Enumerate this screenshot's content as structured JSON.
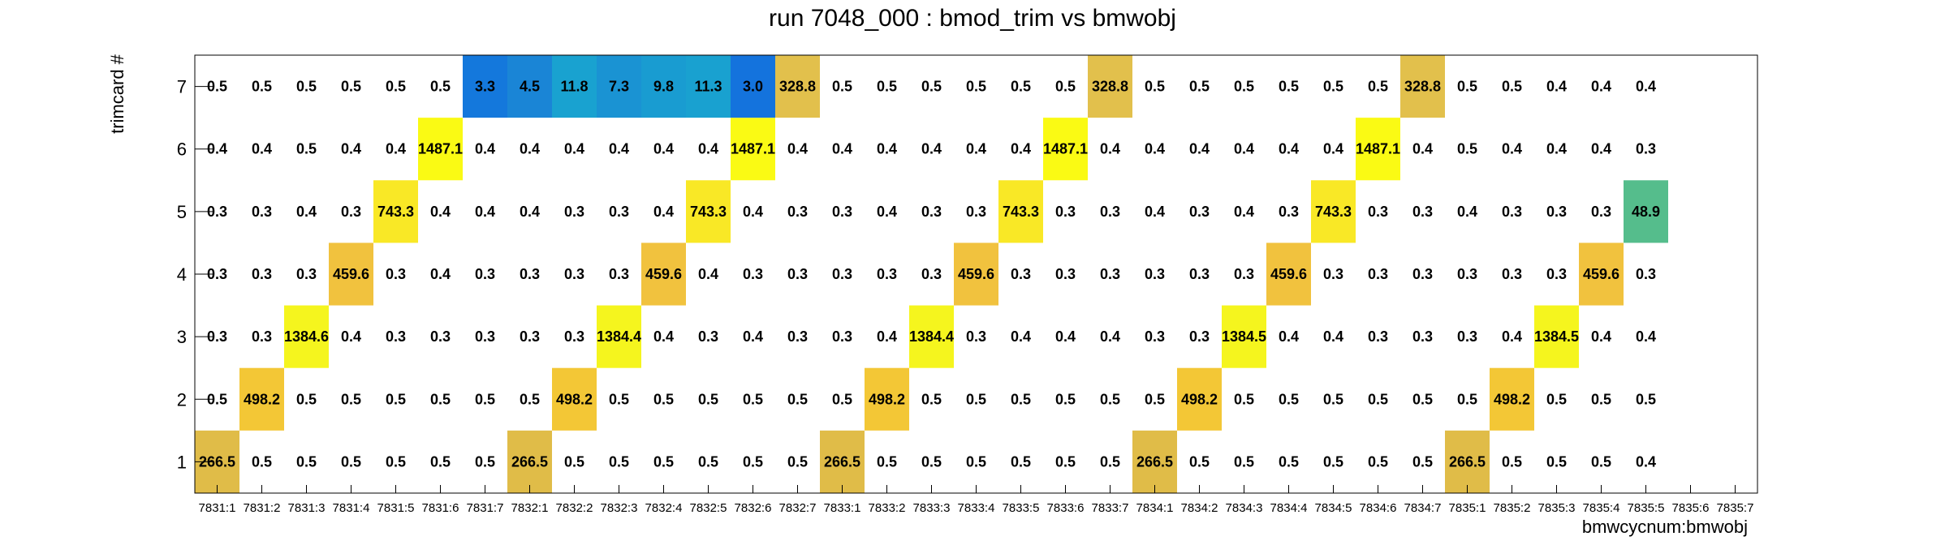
{
  "chart_data": {
    "type": "heatmap",
    "title": "run 7048_000 : bmod_trim vs bmwobj",
    "xlabel": "bmwcycnum:bmwobj",
    "ylabel": "trimcard #",
    "categories": [
      "7831:1",
      "7831:2",
      "7831:3",
      "7831:4",
      "7831:5",
      "7831:6",
      "7831:7",
      "7832:1",
      "7832:2",
      "7832:3",
      "7832:4",
      "7832:5",
      "7832:6",
      "7832:7",
      "7833:1",
      "7833:2",
      "7833:3",
      "7833:4",
      "7833:5",
      "7833:6",
      "7833:7",
      "7834:1",
      "7834:2",
      "7834:3",
      "7834:4",
      "7834:5",
      "7834:6",
      "7834:7",
      "7835:1",
      "7835:2",
      "7835:3",
      "7835:4",
      "7835:5",
      "7835:6",
      "7835:7"
    ],
    "rows": [
      "1",
      "2",
      "3",
      "4",
      "5",
      "6",
      "7"
    ],
    "values": [
      [
        "266.5",
        "0.5",
        "0.5",
        "0.5",
        "0.5",
        "0.5",
        "0.5",
        "266.5",
        "0.5",
        "0.5",
        "0.5",
        "0.5",
        "0.5",
        "0.5",
        "266.5",
        "0.5",
        "0.5",
        "0.5",
        "0.5",
        "0.5",
        "0.5",
        "266.5",
        "0.5",
        "0.5",
        "0.5",
        "0.5",
        "0.5",
        "0.5",
        "266.5",
        "0.5",
        "0.5",
        "0.5",
        "0.4",
        null,
        null
      ],
      [
        "0.5",
        "498.2",
        "0.5",
        "0.5",
        "0.5",
        "0.5",
        "0.5",
        "0.5",
        "498.2",
        "0.5",
        "0.5",
        "0.5",
        "0.5",
        "0.5",
        "0.5",
        "498.2",
        "0.5",
        "0.5",
        "0.5",
        "0.5",
        "0.5",
        "0.5",
        "498.2",
        "0.5",
        "0.5",
        "0.5",
        "0.5",
        "0.5",
        "0.5",
        "498.2",
        "0.5",
        "0.5",
        "0.5",
        null,
        null
      ],
      [
        "0.3",
        "0.3",
        "1384.6",
        "0.4",
        "0.3",
        "0.3",
        "0.3",
        "0.3",
        "0.3",
        "1384.4",
        "0.4",
        "0.3",
        "0.4",
        "0.3",
        "0.3",
        "0.4",
        "1384.4",
        "0.3",
        "0.4",
        "0.4",
        "0.4",
        "0.3",
        "0.3",
        "1384.5",
        "0.4",
        "0.4",
        "0.3",
        "0.3",
        "0.3",
        "0.4",
        "1384.5",
        "0.4",
        "0.4",
        null,
        null
      ],
      [
        "0.3",
        "0.3",
        "0.3",
        "459.6",
        "0.3",
        "0.4",
        "0.3",
        "0.3",
        "0.3",
        "0.3",
        "459.6",
        "0.4",
        "0.3",
        "0.3",
        "0.3",
        "0.3",
        "0.3",
        "459.6",
        "0.3",
        "0.3",
        "0.3",
        "0.3",
        "0.3",
        "0.3",
        "459.6",
        "0.3",
        "0.3",
        "0.3",
        "0.3",
        "0.3",
        "0.3",
        "459.6",
        "0.3",
        null,
        null
      ],
      [
        "0.3",
        "0.3",
        "0.4",
        "0.3",
        "743.3",
        "0.4",
        "0.4",
        "0.4",
        "0.3",
        "0.3",
        "0.4",
        "743.3",
        "0.4",
        "0.3",
        "0.3",
        "0.4",
        "0.3",
        "0.3",
        "743.3",
        "0.3",
        "0.3",
        "0.4",
        "0.3",
        "0.4",
        "0.3",
        "743.3",
        "0.3",
        "0.3",
        "0.4",
        "0.3",
        "0.3",
        "0.3",
        "48.9",
        null,
        null
      ],
      [
        "0.4",
        "0.4",
        "0.5",
        "0.4",
        "0.4",
        "1487.1",
        "0.4",
        "0.4",
        "0.4",
        "0.4",
        "0.4",
        "0.4",
        "1487.1",
        "0.4",
        "0.4",
        "0.4",
        "0.4",
        "0.4",
        "0.4",
        "1487.1",
        "0.4",
        "0.4",
        "0.4",
        "0.4",
        "0.4",
        "0.4",
        "1487.1",
        "0.4",
        "0.5",
        "0.4",
        "0.4",
        "0.4",
        "0.3",
        null,
        null
      ],
      [
        "0.5",
        "0.5",
        "0.5",
        "0.5",
        "0.5",
        "0.5",
        "3.3",
        "4.5",
        "11.8",
        "7.3",
        "9.8",
        "11.3",
        "3.0",
        "328.8",
        "0.5",
        "0.5",
        "0.5",
        "0.5",
        "0.5",
        "0.5",
        "328.8",
        "0.5",
        "0.5",
        "0.5",
        "0.5",
        "0.5",
        "0.5",
        "328.8",
        "0.5",
        "0.5",
        "0.4",
        "0.4",
        "0.4",
        null,
        null
      ]
    ],
    "colored_cells": [
      {
        "row": 0,
        "col": 0,
        "color": "#e0bc48"
      },
      {
        "row": 0,
        "col": 7,
        "color": "#e0bc48"
      },
      {
        "row": 0,
        "col": 14,
        "color": "#e0bc48"
      },
      {
        "row": 0,
        "col": 21,
        "color": "#e0bc48"
      },
      {
        "row": 0,
        "col": 28,
        "color": "#e0bc48"
      },
      {
        "row": 1,
        "col": 1,
        "color": "#f3c736"
      },
      {
        "row": 1,
        "col": 8,
        "color": "#f3c736"
      },
      {
        "row": 1,
        "col": 15,
        "color": "#f3c736"
      },
      {
        "row": 1,
        "col": 22,
        "color": "#f3c736"
      },
      {
        "row": 1,
        "col": 29,
        "color": "#f3c736"
      },
      {
        "row": 2,
        "col": 2,
        "color": "#f5f51e"
      },
      {
        "row": 2,
        "col": 9,
        "color": "#f5f51e"
      },
      {
        "row": 2,
        "col": 16,
        "color": "#f5f51e"
      },
      {
        "row": 2,
        "col": 23,
        "color": "#f5f51e"
      },
      {
        "row": 2,
        "col": 30,
        "color": "#f5f51e"
      },
      {
        "row": 3,
        "col": 3,
        "color": "#f1c23e"
      },
      {
        "row": 3,
        "col": 10,
        "color": "#f1c23e"
      },
      {
        "row": 3,
        "col": 17,
        "color": "#f1c23e"
      },
      {
        "row": 3,
        "col": 24,
        "color": "#f1c23e"
      },
      {
        "row": 3,
        "col": 31,
        "color": "#f1c23e"
      },
      {
        "row": 4,
        "col": 4,
        "color": "#f9e826"
      },
      {
        "row": 4,
        "col": 11,
        "color": "#f9e826"
      },
      {
        "row": 4,
        "col": 18,
        "color": "#f9e826"
      },
      {
        "row": 4,
        "col": 25,
        "color": "#f9e826"
      },
      {
        "row": 4,
        "col": 32,
        "color": "#55bd8c"
      },
      {
        "row": 5,
        "col": 5,
        "color": "#fafa14"
      },
      {
        "row": 5,
        "col": 12,
        "color": "#fafa14"
      },
      {
        "row": 5,
        "col": 19,
        "color": "#fafa14"
      },
      {
        "row": 5,
        "col": 26,
        "color": "#fafa14"
      },
      {
        "row": 6,
        "col": 6,
        "color": "#1478dc"
      },
      {
        "row": 6,
        "col": 7,
        "color": "#1a85d6"
      },
      {
        "row": 6,
        "col": 8,
        "color": "#19a2d0"
      },
      {
        "row": 6,
        "col": 9,
        "color": "#1a93d3"
      },
      {
        "row": 6,
        "col": 10,
        "color": "#199cd1"
      },
      {
        "row": 6,
        "col": 11,
        "color": "#19a1d0"
      },
      {
        "row": 6,
        "col": 12,
        "color": "#1473dd"
      },
      {
        "row": 6,
        "col": 13,
        "color": "#e2c04c"
      },
      {
        "row": 6,
        "col": 20,
        "color": "#e2c04c"
      },
      {
        "row": 6,
        "col": 27,
        "color": "#e2c04c"
      }
    ]
  }
}
